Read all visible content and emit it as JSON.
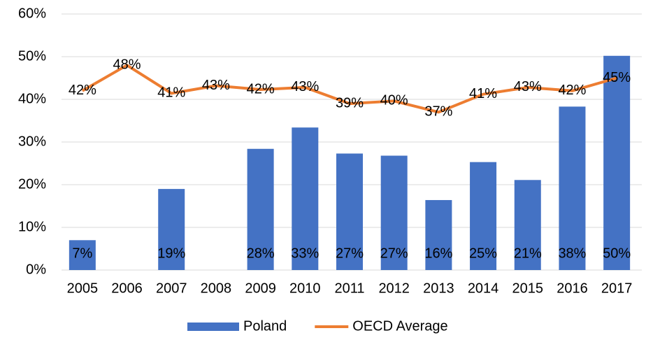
{
  "chart_data": {
    "type": "bar-line",
    "categories": [
      "2005",
      "2006",
      "2007",
      "2008",
      "2009",
      "2010",
      "2011",
      "2012",
      "2013",
      "2014",
      "2015",
      "2016",
      "2017"
    ],
    "series": [
      {
        "name": "Poland",
        "type": "bar",
        "color": "#4472c4",
        "values": [
          7,
          null,
          19,
          null,
          28.4,
          33.4,
          27.3,
          26.8,
          16.4,
          25.3,
          21.1,
          38.3,
          50.2
        ],
        "value_labels": [
          "7%",
          null,
          "19%",
          null,
          "28%",
          "33%",
          "27%",
          "27%",
          "16%",
          "25%",
          "21%",
          "38%",
          "50%"
        ]
      },
      {
        "name": "OECD Average",
        "type": "line",
        "color": "#ed7d31",
        "values": [
          42,
          48,
          41.4,
          43.2,
          42.3,
          42.8,
          39,
          39.6,
          37,
          41.2,
          42.8,
          42,
          45
        ],
        "value_labels": [
          "42%",
          "48%",
          "41%",
          "43%",
          "42%",
          "43%",
          "39%",
          "40%",
          "37%",
          "41%",
          "43%",
          "42%",
          "45%"
        ]
      }
    ],
    "ylim": [
      0,
      60
    ],
    "yticks": [
      {
        "value": 0,
        "label": "0%"
      },
      {
        "value": 10,
        "label": "10%"
      },
      {
        "value": 20,
        "label": "20%"
      },
      {
        "value": 30,
        "label": "30%"
      },
      {
        "value": 40,
        "label": "40%"
      },
      {
        "value": 50,
        "label": "50%"
      },
      {
        "value": 60,
        "label": "60%"
      }
    ],
    "grid": true,
    "legend": "bottom"
  }
}
